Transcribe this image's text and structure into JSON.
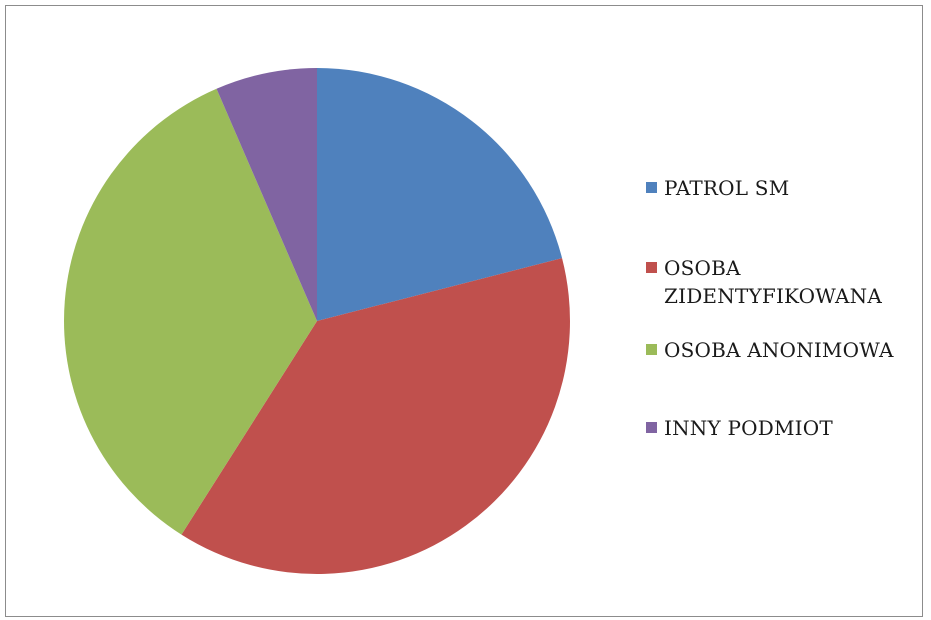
{
  "chart_data": {
    "type": "pie",
    "title": "",
    "categories": [
      "PATROL SM",
      "OSOBA ZIDENTYFIKOWANA",
      "OSOBA ANONIMOWA",
      "INNY PODMIOT"
    ],
    "values": [
      21,
      38,
      34.5,
      6.5
    ],
    "colors": [
      "#4f81bd",
      "#c0504d",
      "#9bbb59",
      "#8064a2"
    ],
    "start_angle_deg": 0,
    "direction": "clockwise",
    "legend_position": "right"
  }
}
